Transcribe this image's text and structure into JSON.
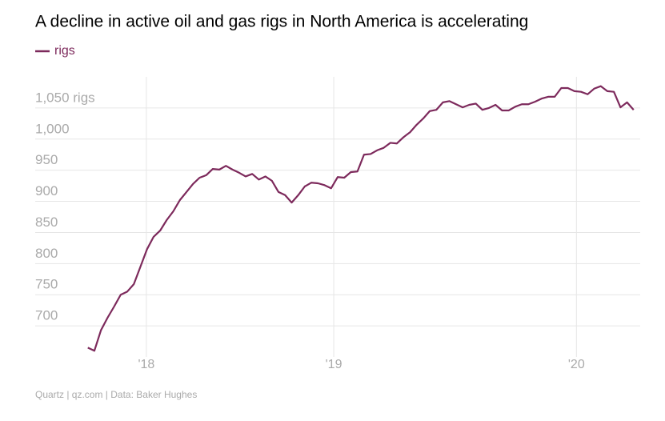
{
  "chart_data": {
    "type": "line",
    "title": "A decline in active oil and gas rigs in North America is accelerating",
    "source": "Quartz | qz.com | Data: Baker Hughes",
    "x": [
      0,
      1,
      2,
      3,
      4,
      5,
      6,
      7,
      8,
      9,
      10,
      11,
      12,
      13,
      14,
      15,
      16,
      17,
      18,
      19,
      20,
      21,
      22,
      23,
      24,
      25,
      26,
      27,
      28,
      29,
      30,
      31,
      32,
      33,
      34,
      35,
      36,
      37,
      38,
      39,
      40,
      41,
      42,
      43,
      44,
      45,
      46,
      47,
      48,
      49,
      50,
      51,
      52,
      53,
      54,
      55,
      56,
      57,
      58,
      59,
      60,
      61,
      62,
      63,
      64,
      65,
      66,
      67,
      68,
      69,
      70,
      71,
      72,
      73,
      74,
      75,
      76,
      77,
      78,
      79,
      80,
      81,
      82,
      83
    ],
    "series": [
      {
        "name": "rigs",
        "color": "#7d2a5c",
        "values": [
          665,
          660,
          693,
          713,
          731,
          750,
          755,
          767,
          795,
          823,
          843,
          853,
          870,
          884,
          902,
          915,
          928,
          938,
          942,
          952,
          951,
          957,
          951,
          946,
          940,
          944,
          935,
          940,
          933,
          915,
          910,
          898,
          910,
          924,
          930,
          929,
          926,
          921,
          939,
          938,
          947,
          948,
          975,
          976,
          982,
          986,
          994,
          993,
          1003,
          1011,
          1023,
          1033,
          1045,
          1047,
          1059,
          1061,
          1056,
          1051,
          1055,
          1057,
          1047,
          1050,
          1055,
          1046,
          1046,
          1052,
          1056,
          1056,
          1060,
          1065,
          1068,
          1068,
          1082,
          1082,
          1077,
          1076,
          1072,
          1081,
          1085,
          1077,
          1076,
          1051,
          1059,
          1047
        ]
      }
    ],
    "xlim": [
      -8,
      84
    ],
    "xticks": [
      {
        "value": 8.9,
        "label": "'18"
      },
      {
        "value": 37.4,
        "label": "'19"
      },
      {
        "value": 74.3,
        "label": "'20"
      }
    ],
    "ylim": [
      650,
      1100
    ],
    "yticks": [
      700,
      750,
      800,
      850,
      900,
      950,
      {
        "value": 1000,
        "label": "1,000"
      },
      {
        "value": 1050,
        "label": "1,050 rigs"
      }
    ],
    "grid": true
  }
}
